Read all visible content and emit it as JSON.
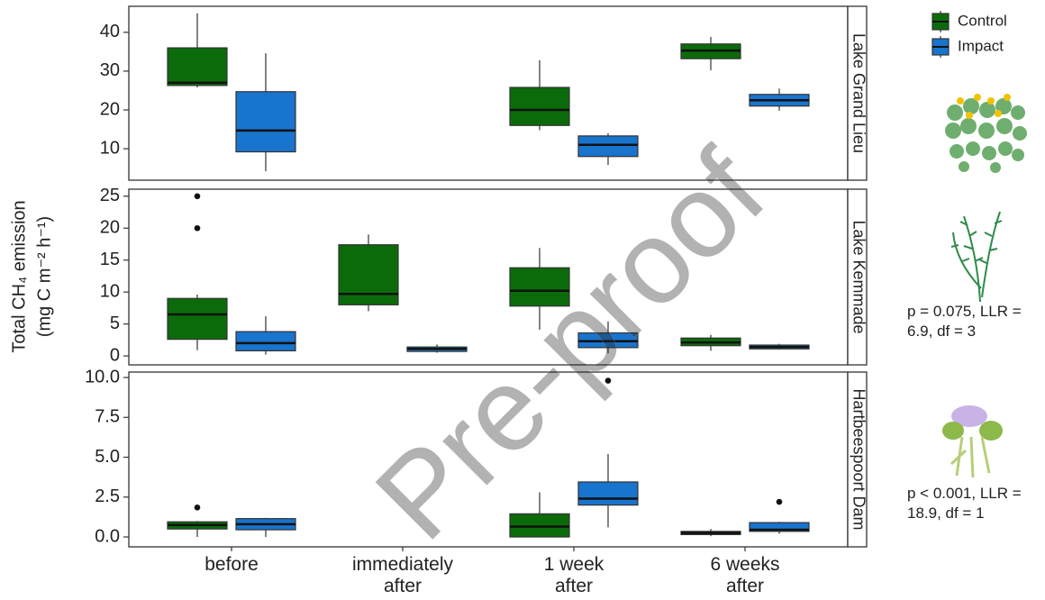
{
  "chart_data": {
    "type": "box",
    "ylabel": [
      "Total CH₄ emission",
      "(mg C m⁻² h⁻¹)"
    ],
    "categories": [
      "before",
      "immediately\nafter",
      "1 week\nafter",
      "6 weeks\nafter"
    ],
    "series": [
      {
        "name": "Control",
        "color": "#0b6b0b"
      },
      {
        "name": "Impact",
        "color": "#1874cd"
      }
    ],
    "watermark": "Pre-proof",
    "facets": [
      {
        "title": "Lake Grand Lieu",
        "ylim": [
          1.9,
          46.7
        ],
        "yticks": [
          10,
          20,
          30,
          40
        ],
        "series": [
          {
            "values": [
              {
                "whislo": 25.8,
                "q1": 26.3,
                "med": 27,
                "q3": 36,
                "whishi": 44.9
              },
              null,
              {
                "whislo": 14.8,
                "q1": 16,
                "med": 20,
                "q3": 25.8,
                "whishi": 32.8
              },
              {
                "whislo": 30.2,
                "q1": 33.2,
                "med": 35.3,
                "q3": 37,
                "whishi": 38.8
              }
            ]
          },
          {
            "values": [
              {
                "whislo": 4.2,
                "q1": 9.2,
                "med": 14.7,
                "q3": 24.7,
                "whishi": 34.6
              },
              null,
              {
                "whislo": 5.8,
                "q1": 8,
                "med": 11,
                "q3": 13.3,
                "whishi": 14
              },
              {
                "whislo": 19.8,
                "q1": 21,
                "med": 22.5,
                "q3": 24,
                "whishi": 25.5
              }
            ]
          }
        ]
      },
      {
        "title": "Lake Kemmade",
        "ylim": [
          -1.4,
          26.1
        ],
        "yticks": [
          0,
          5,
          10,
          15,
          20,
          25
        ],
        "annotation": "p = 0.075, LLR = 6.9, df = 3",
        "series": [
          {
            "values": [
              {
                "whislo": 0.9,
                "q1": 2.6,
                "med": 6.5,
                "q3": 9,
                "whishi": 9.6,
                "fliers": [
                  20,
                  25
                ]
              },
              {
                "whislo": 7,
                "q1": 8,
                "med": 9.7,
                "q3": 17.4,
                "whishi": 19
              },
              {
                "whislo": 4.1,
                "q1": 7.8,
                "med": 10.2,
                "q3": 13.8,
                "whishi": 16.9
              },
              {
                "whislo": 0.8,
                "q1": 1.6,
                "med": 2.1,
                "q3": 2.8,
                "whishi": 3.3
              }
            ]
          },
          {
            "values": [
              {
                "whislo": 0.2,
                "q1": 0.8,
                "med": 2,
                "q3": 3.8,
                "whishi": 6.2
              },
              {
                "whislo": 0.5,
                "q1": 0.7,
                "med": 1.1,
                "q3": 1.4,
                "whishi": 1.8
              },
              {
                "whislo": 0.4,
                "q1": 1.3,
                "med": 2.3,
                "q3": 3.6,
                "whishi": 5.4
              },
              {
                "whislo": 1,
                "q1": 1.1,
                "med": 1.4,
                "q3": 1.7,
                "whishi": 1.9
              }
            ]
          }
        ]
      },
      {
        "title": "Hartbeespoort Dam",
        "ylim": [
          -0.62,
          10.34
        ],
        "yticks": [
          {
            "value": 0,
            "label": "0.0"
          },
          2.5,
          {
            "value": 5,
            "label": "5.0"
          },
          7.5,
          {
            "value": 10,
            "label": "10.0"
          }
        ],
        "annotation": "p < 0.001, LLR = 18.9, df = 1",
        "series": [
          {
            "values": [
              {
                "whislo": 0,
                "q1": 0.5,
                "med": 0.75,
                "q3": 0.95,
                "whishi": 1,
                "fliers": [
                  1.85
                ]
              },
              null,
              {
                "whislo": 0,
                "q1": 0,
                "med": 0.65,
                "q3": 1.45,
                "whishi": 2.8
              },
              {
                "whislo": 0.05,
                "q1": 0.15,
                "med": 0.25,
                "q3": 0.35,
                "whishi": 0.5
              }
            ]
          },
          {
            "values": [
              {
                "whislo": 0,
                "q1": 0.45,
                "med": 0.8,
                "q3": 1.15,
                "whishi": 1.2
              },
              null,
              {
                "whislo": 0.6,
                "q1": 2,
                "med": 2.4,
                "q3": 3.45,
                "whishi": 5.2,
                "fliers": [
                  9.8
                ]
              },
              {
                "whislo": 0.2,
                "q1": 0.35,
                "med": 0.45,
                "q3": 0.9,
                "whishi": 0.95,
                "fliers": [
                  2.2
                ]
              }
            ]
          }
        ]
      }
    ]
  }
}
